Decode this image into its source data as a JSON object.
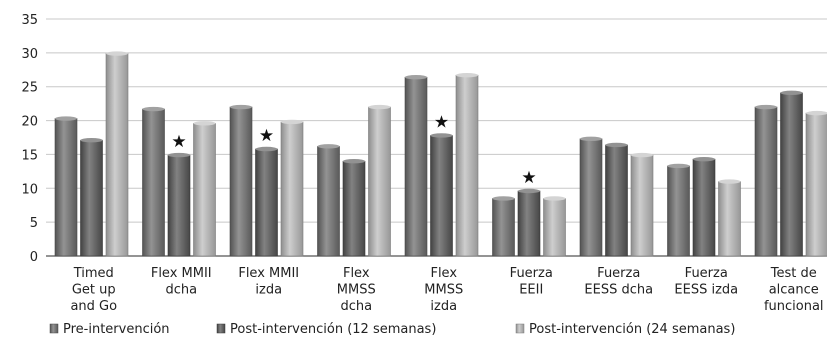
{
  "chart_data": {
    "type": "bar",
    "categories": [
      [
        "Timed",
        "Get up",
        "and Go"
      ],
      [
        "Flex MMII",
        "dcha"
      ],
      [
        "Flex MMII",
        "izda"
      ],
      [
        "Flex",
        "MMSS",
        "dcha"
      ],
      [
        "Flex",
        "MMSS",
        "izda"
      ],
      [
        "Fuerza",
        "EEII"
      ],
      [
        "Fuerza",
        "EESS dcha"
      ],
      [
        "Fuerza",
        "EESS izda"
      ],
      [
        "Test de",
        "alcance",
        "funcional"
      ]
    ],
    "series": [
      {
        "name": "Pre-intervención",
        "values": [
          20.3,
          21.7,
          22.0,
          16.2,
          26.4,
          8.5,
          17.3,
          13.3,
          22.0
        ],
        "color": "#6f6f6f"
      },
      {
        "name": "Post-intervención (12 semanas)",
        "values": [
          17.1,
          14.9,
          15.8,
          14.0,
          17.8,
          9.6,
          16.4,
          14.3,
          24.1
        ],
        "color": "#585858"
      },
      {
        "name": "Post-intervención (24 semanas)",
        "values": [
          29.9,
          19.6,
          19.8,
          22.0,
          26.7,
          8.5,
          14.9,
          11.0,
          21.1
        ],
        "color": "#bdbdbd"
      }
    ],
    "significance_markers": [
      {
        "category_index": 1,
        "series_index": 1,
        "symbol": "★"
      },
      {
        "category_index": 2,
        "series_index": 1,
        "symbol": "★"
      },
      {
        "category_index": 4,
        "series_index": 1,
        "symbol": "★"
      },
      {
        "category_index": 5,
        "series_index": 1,
        "symbol": "★"
      }
    ],
    "yticks": [
      0,
      5,
      10,
      15,
      20,
      25,
      30,
      35
    ],
    "ylim": [
      0,
      35
    ],
    "grid": true,
    "legend_position": "bottom",
    "title": "",
    "xlabel": "",
    "ylabel": ""
  }
}
